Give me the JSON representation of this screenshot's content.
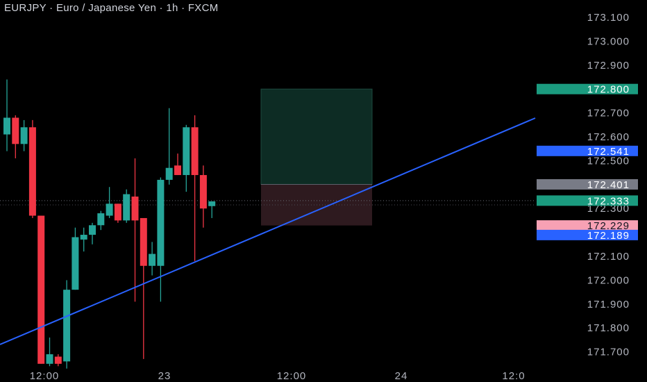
{
  "header": {
    "title": "EURJPY · Euro / Japanese Yen · 1h · FXCM"
  },
  "colors": {
    "background": "#000000",
    "bull": "#26a69a",
    "bear": "#f23645",
    "trendline": "#2962ff",
    "target_zone": "#0d2c24",
    "stop_zone": "#2e1a1f",
    "axis_text": "#b2b5be"
  },
  "chart_data": {
    "type": "candlestick",
    "symbol": "EURJPY",
    "timeframe": "1h",
    "broker": "FXCM",
    "ylim": [
      171.63,
      173.17
    ],
    "y_ticks": [
      "173.100",
      "173.000",
      "172.900",
      "172.700",
      "172.600",
      "172.500",
      "172.300",
      "172.100",
      "172.000",
      "171.900",
      "171.800",
      "171.700"
    ],
    "x_ticks": [
      "12:00",
      "23",
      "12:00",
      "24",
      "12:0"
    ],
    "candles": [
      {
        "o": 172.61,
        "h": 172.84,
        "l": 172.54,
        "c": 172.68
      },
      {
        "o": 172.68,
        "h": 172.69,
        "l": 172.51,
        "c": 172.57
      },
      {
        "o": 172.57,
        "h": 172.67,
        "l": 172.54,
        "c": 172.64
      },
      {
        "o": 172.64,
        "h": 172.67,
        "l": 172.26,
        "c": 172.27
      },
      {
        "o": 172.27,
        "h": 172.27,
        "l": 171.65,
        "c": 171.65
      },
      {
        "o": 171.65,
        "h": 171.76,
        "l": 171.64,
        "c": 171.69
      },
      {
        "o": 171.68,
        "h": 171.69,
        "l": 171.64,
        "c": 171.65
      },
      {
        "o": 171.66,
        "h": 172.0,
        "l": 171.63,
        "c": 171.96
      },
      {
        "o": 171.96,
        "h": 172.22,
        "l": 171.96,
        "c": 172.18
      },
      {
        "o": 172.17,
        "h": 172.22,
        "l": 172.12,
        "c": 172.19
      },
      {
        "o": 172.19,
        "h": 172.24,
        "l": 172.15,
        "c": 172.23
      },
      {
        "o": 172.23,
        "h": 172.29,
        "l": 172.21,
        "c": 172.28
      },
      {
        "o": 172.27,
        "h": 172.39,
        "l": 172.26,
        "c": 172.32
      },
      {
        "o": 172.32,
        "h": 172.32,
        "l": 172.24,
        "c": 172.25
      },
      {
        "o": 172.25,
        "h": 172.38,
        "l": 172.24,
        "c": 172.36
      },
      {
        "o": 172.35,
        "h": 172.51,
        "l": 171.91,
        "c": 172.25
      },
      {
        "o": 172.26,
        "h": 172.26,
        "l": 171.67,
        "c": 172.06
      },
      {
        "o": 172.06,
        "h": 172.16,
        "l": 172.02,
        "c": 172.11
      },
      {
        "o": 172.06,
        "h": 172.43,
        "l": 171.91,
        "c": 172.42
      },
      {
        "o": 172.42,
        "h": 172.72,
        "l": 172.4,
        "c": 172.47
      },
      {
        "o": 172.48,
        "h": 172.53,
        "l": 172.44,
        "c": 172.44
      },
      {
        "o": 172.44,
        "h": 172.65,
        "l": 172.37,
        "c": 172.64
      },
      {
        "o": 172.64,
        "h": 172.69,
        "l": 172.08,
        "c": 172.44
      },
      {
        "o": 172.44,
        "h": 172.48,
        "l": 172.22,
        "c": 172.3
      },
      {
        "o": 172.31,
        "h": 172.33,
        "l": 172.26,
        "c": 172.33
      }
    ],
    "trendline": {
      "x0": "2024-07-22 05:00",
      "y0": 171.7,
      "x1": "2024-07-24 03:00",
      "y1": 172.7
    },
    "position": {
      "type": "long",
      "entry": 172.401,
      "target": 172.8,
      "stop": 172.229
    },
    "price_labels": [
      {
        "key": "target",
        "value": "172.800",
        "bg": "#1b9b7f",
        "fg": "#ffffff"
      },
      {
        "key": "trendline",
        "value": "172.541",
        "bg": "#2962ff",
        "fg": "#ffffff"
      },
      {
        "key": "entry",
        "value": "172.401",
        "bg": "#787b86",
        "fg": "#ffffff"
      },
      {
        "key": "last",
        "value": "172.333",
        "bg": "#1b9b7f",
        "fg": "#ffffff"
      },
      {
        "key": "stop",
        "value": "172.229",
        "bg": "#f7a1b4",
        "fg": "#131722"
      },
      {
        "key": "trendline-low",
        "value": "172.189",
        "bg": "#2962ff",
        "fg": "#ffffff"
      }
    ]
  }
}
